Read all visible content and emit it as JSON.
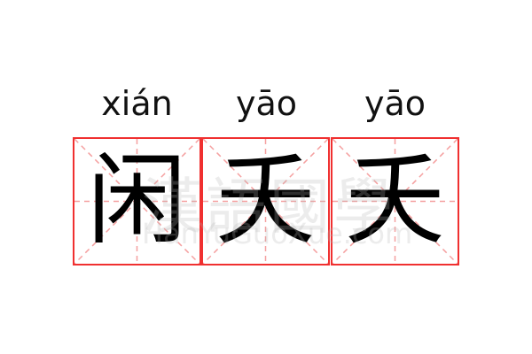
{
  "colors": {
    "grid_border": "#f03030",
    "guide_lines": "#f5a0a0",
    "text": "#000000"
  },
  "cells": [
    {
      "pinyin": "xián",
      "char": "闲"
    },
    {
      "pinyin": "yāo",
      "char": "夭"
    },
    {
      "pinyin": "yāo",
      "char": "夭"
    }
  ],
  "watermark": {
    "chinese": "漢語國學",
    "latin": "HanYuGuoXue.com"
  }
}
